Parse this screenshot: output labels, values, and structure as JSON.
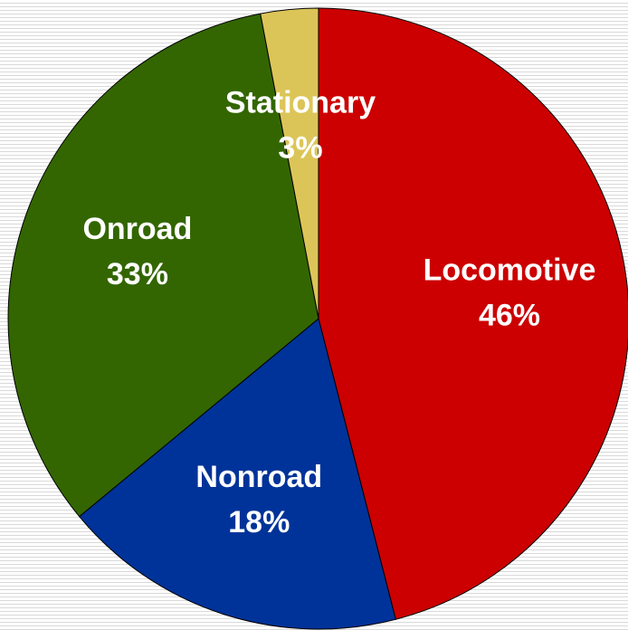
{
  "chart_data": {
    "type": "pie",
    "categories": [
      "Locomotive",
      "Nonroad",
      "Onroad",
      "Stationary"
    ],
    "values": [
      46,
      18,
      33,
      3
    ],
    "value_labels": [
      "46%",
      "18%",
      "33%",
      "3%"
    ],
    "colors": [
      "#cc0000",
      "#003399",
      "#336600",
      "#dcc558"
    ],
    "start_angle": 0,
    "direction": "clockwise"
  }
}
